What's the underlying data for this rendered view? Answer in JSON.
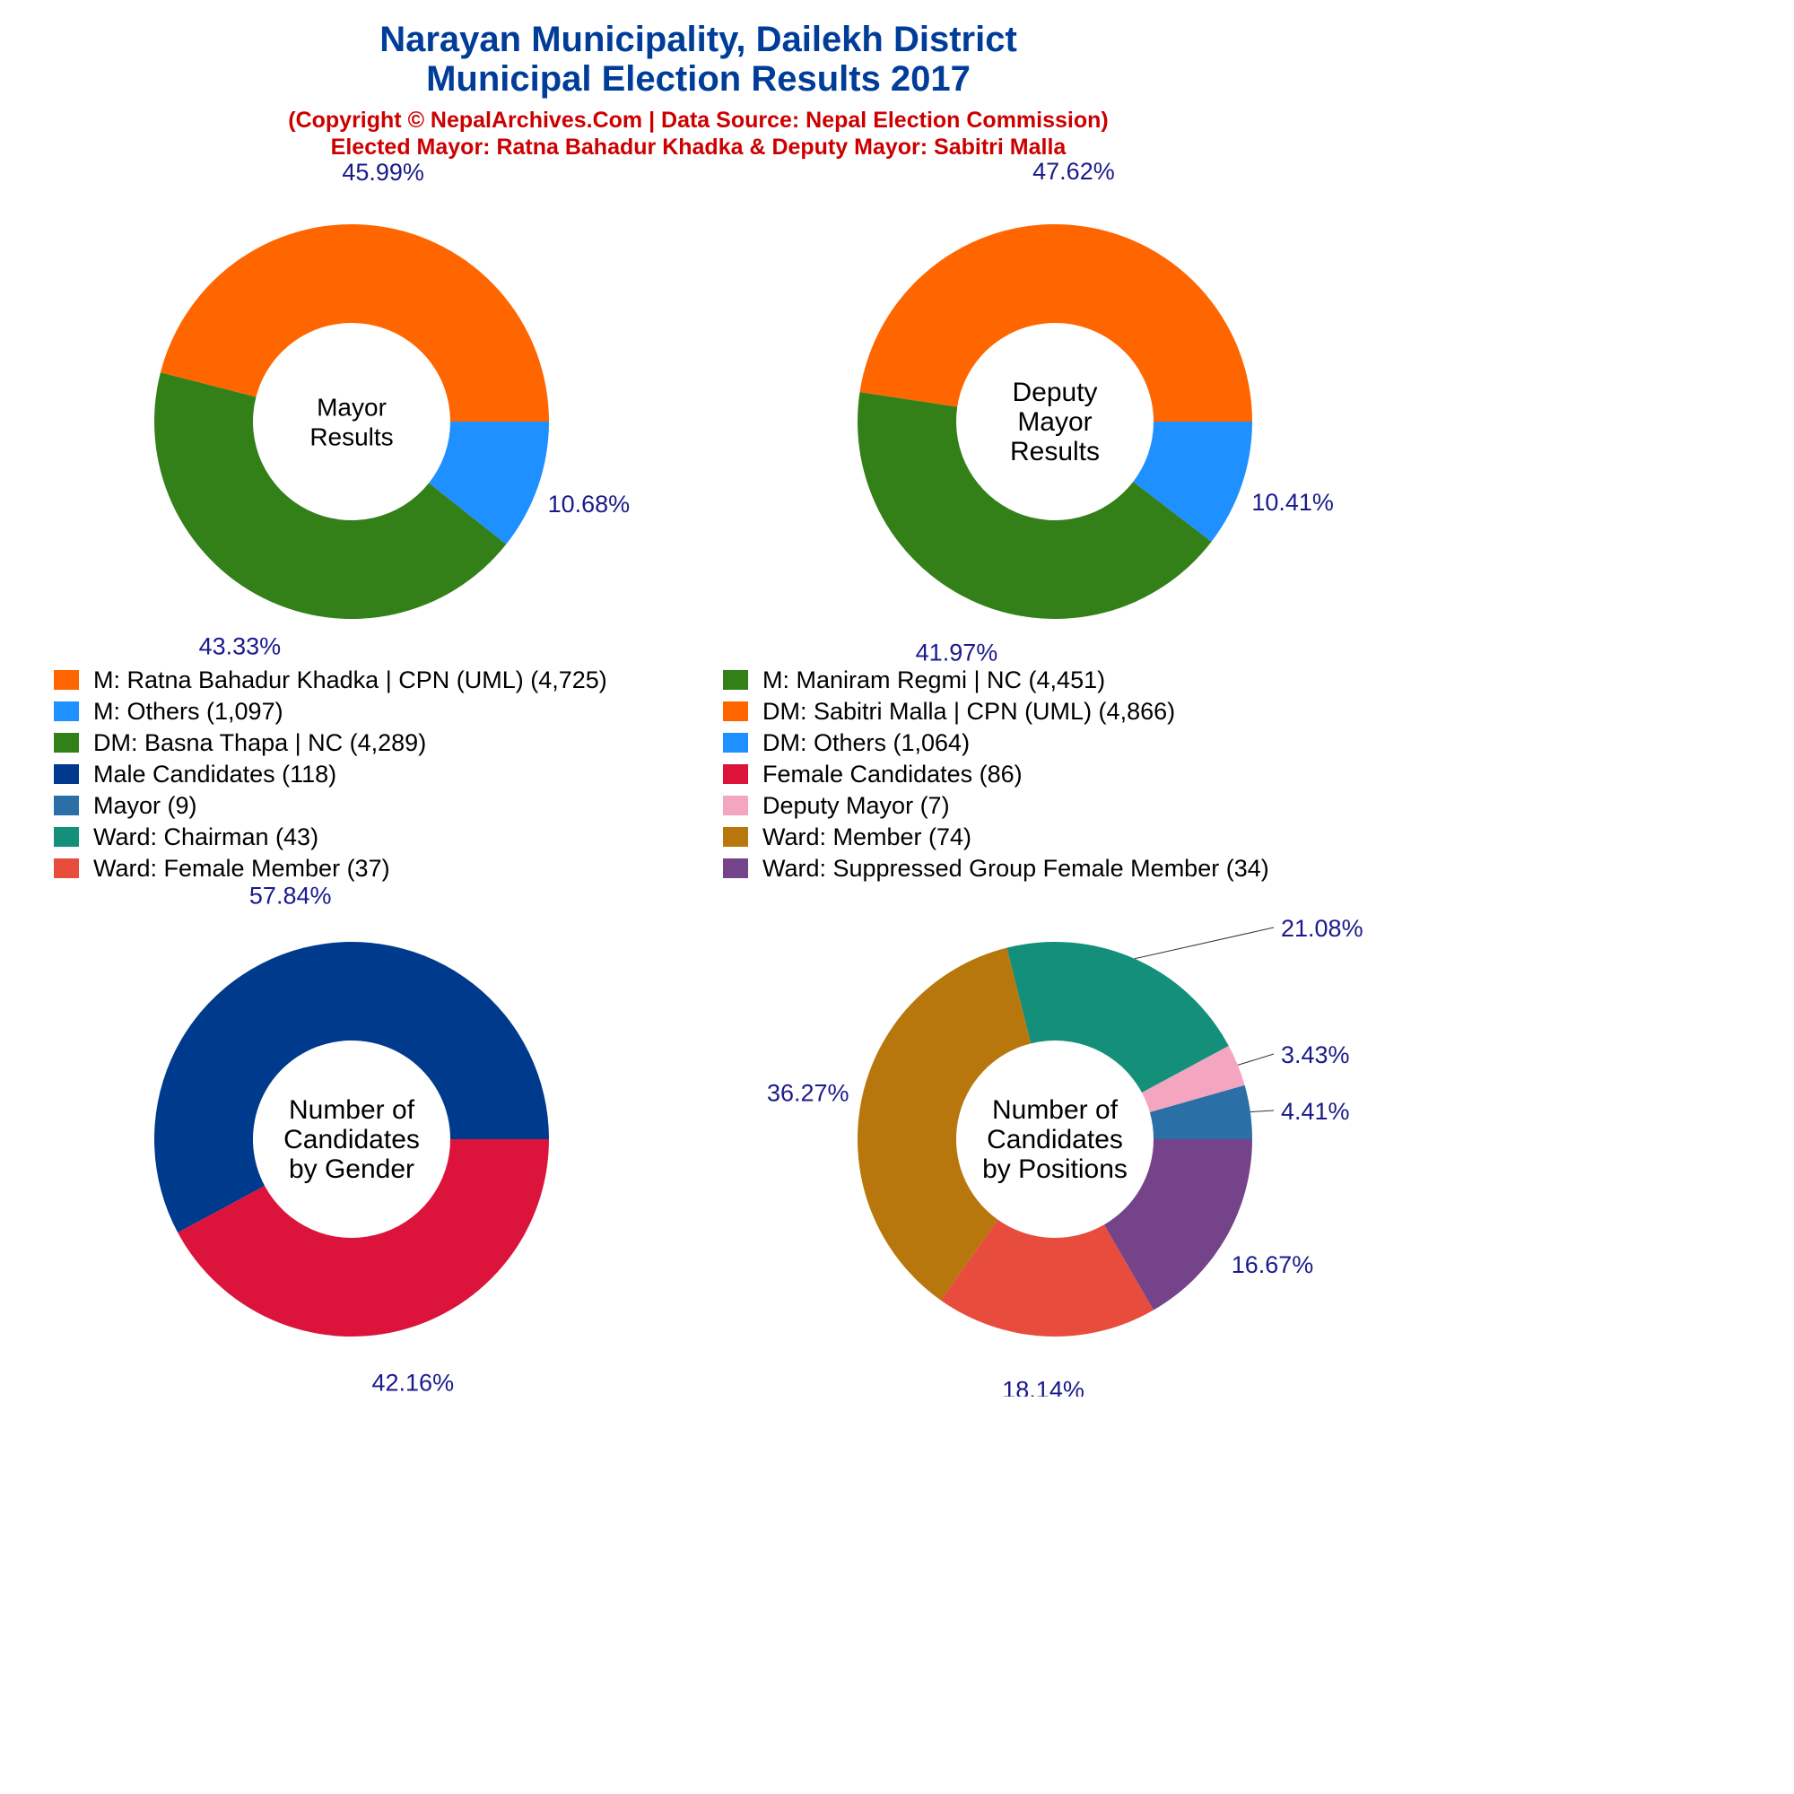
{
  "header": {
    "title_line1": "Narayan Municipality, Dailekh District",
    "title_line2": "Municipal Election Results 2017",
    "subtitle_line1": "(Copyright © NepalArchives.Com | Data Source: Nepal Election Commission)",
    "subtitle_line2": "Elected Mayor: Ratna Bahadur Khadka & Deputy Mayor: Sabitri Malla"
  },
  "colors": {
    "title": "#003d99",
    "subtitle": "#cc0000",
    "percent_label": "#1a1a8c"
  },
  "legend": {
    "items": [
      {
        "label": "M: Ratna Bahadur Khadka | CPN (UML) (4,725)",
        "color": "#ff6600"
      },
      {
        "label": "M: Maniram Regmi | NC (4,451)",
        "color": "#338019"
      },
      {
        "label": "M: Others (1,097)",
        "color": "#1e90ff"
      },
      {
        "label": "DM: Sabitri Malla | CPN (UML) (4,866)",
        "color": "#ff6600"
      },
      {
        "label": "DM: Basna Thapa | NC (4,289)",
        "color": "#338019"
      },
      {
        "label": "DM: Others (1,064)",
        "color": "#1e90ff"
      },
      {
        "label": "Male Candidates (118)",
        "color": "#003a8c"
      },
      {
        "label": "Female Candidates (86)",
        "color": "#dc143c"
      },
      {
        "label": "Mayor (9)",
        "color": "#2a70a6"
      },
      {
        "label": "Deputy Mayor (7)",
        "color": "#f4a6c0"
      },
      {
        "label": "Ward: Chairman (43)",
        "color": "#14907a"
      },
      {
        "label": "Ward: Member (74)",
        "color": "#b8770d"
      },
      {
        "label": "Ward: Female Member (37)",
        "color": "#e84c3d"
      },
      {
        "label": "Ward: Suppressed Group Female Member (34)",
        "color": "#744389"
      }
    ]
  },
  "chart_data": [
    {
      "type": "pie",
      "donut": true,
      "center_label": [
        "Mayor",
        "Results"
      ],
      "slices": [
        {
          "name": "M: Ratna Bahadur Khadka | CPN (UML)",
          "value": 4725,
          "percent_label": "45.99%",
          "color": "#ff6600"
        },
        {
          "name": "M: Maniram Regmi | NC",
          "value": 4451,
          "percent_label": "43.33%",
          "color": "#338019"
        },
        {
          "name": "M: Others",
          "value": 1097,
          "percent_label": "10.68%",
          "color": "#1e90ff"
        }
      ]
    },
    {
      "type": "pie",
      "donut": true,
      "center_label": [
        "Deputy",
        "Mayor",
        "Results"
      ],
      "slices": [
        {
          "name": "DM: Sabitri Malla | CPN (UML)",
          "value": 4866,
          "percent_label": "47.62%",
          "color": "#ff6600"
        },
        {
          "name": "DM: Basna Thapa | NC",
          "value": 4289,
          "percent_label": "41.97%",
          "color": "#338019"
        },
        {
          "name": "DM: Others",
          "value": 1064,
          "percent_label": "10.41%",
          "color": "#1e90ff"
        }
      ]
    },
    {
      "type": "pie",
      "donut": true,
      "center_label": [
        "Number of",
        "Candidates",
        "by Gender"
      ],
      "slices": [
        {
          "name": "Male Candidates",
          "value": 118,
          "percent_label": "57.84%",
          "color": "#003a8c"
        },
        {
          "name": "Female Candidates",
          "value": 86,
          "percent_label": "42.16%",
          "color": "#dc143c"
        }
      ]
    },
    {
      "type": "pie",
      "donut": true,
      "center_label": [
        "Number of",
        "Candidates",
        "by Positions"
      ],
      "slices": [
        {
          "name": "Mayor",
          "value": 9,
          "percent_label": "4.41%",
          "color": "#2a70a6"
        },
        {
          "name": "Deputy Mayor",
          "value": 7,
          "percent_label": "3.43%",
          "color": "#f4a6c0"
        },
        {
          "name": "Ward: Chairman",
          "value": 43,
          "percent_label": "21.08%",
          "color": "#14907a"
        },
        {
          "name": "Ward: Member",
          "value": 74,
          "percent_label": "36.27%",
          "color": "#b8770d"
        },
        {
          "name": "Ward: Female Member",
          "value": 37,
          "percent_label": "18.14%",
          "color": "#e84c3d"
        },
        {
          "name": "Ward: Suppressed Group Female Member",
          "value": 34,
          "percent_label": "16.67%",
          "color": "#744389"
        }
      ]
    }
  ]
}
